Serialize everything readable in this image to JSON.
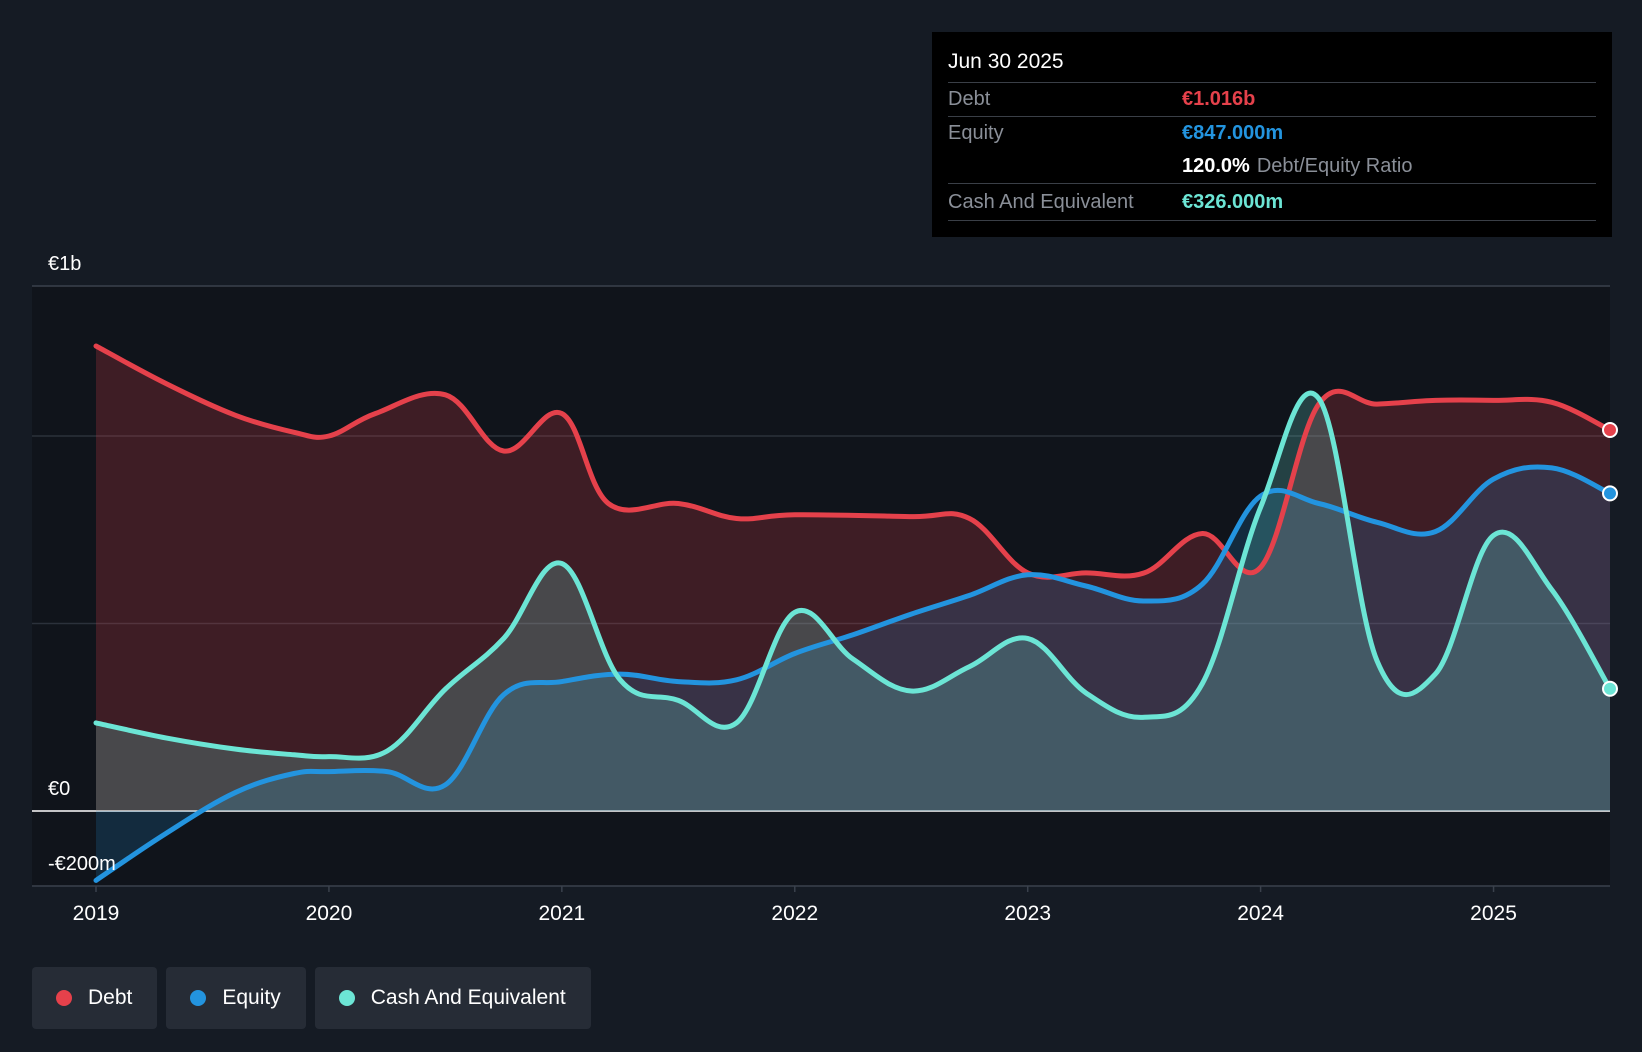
{
  "tooltip": {
    "date": "Jun 30 2025",
    "debt_label": "Debt",
    "debt_value": "€1.016b",
    "equity_label": "Equity",
    "equity_value": "€847.000m",
    "ratio_value": "120.0%",
    "ratio_label": "Debt/Equity Ratio",
    "cash_label": "Cash And Equivalent",
    "cash_value": "€326.000m"
  },
  "legend": {
    "debt": "Debt",
    "equity": "Equity",
    "cash": "Cash And Equivalent"
  },
  "colors": {
    "debt": "#e5414b",
    "equity": "#2394df",
    "cash": "#6ce5d5",
    "background": "#151b24",
    "plot_background": "#10141b"
  },
  "chart_data": {
    "type": "area",
    "title": "",
    "xlabel": "",
    "ylabel": "",
    "ylim": [
      -200,
      1400
    ],
    "y_tick_labels": [
      {
        "value": 1400,
        "label": "€1b"
      },
      {
        "value": 0,
        "label": "€0"
      },
      {
        "value": -200,
        "label": "-€200m"
      }
    ],
    "x_ticks": [
      2019,
      2020,
      2021,
      2022,
      2023,
      2024,
      2025
    ],
    "x_tick_labels": [
      "2019",
      "2020",
      "2021",
      "2022",
      "2023",
      "2024",
      "2025"
    ],
    "x_range": [
      2019.0,
      2025.5
    ],
    "series": [
      {
        "name": "Debt",
        "key": "debt",
        "x": [
          2019.0,
          2019.3,
          2019.6,
          2019.85,
          2020.0,
          2020.2,
          2020.5,
          2020.75,
          2021.0,
          2021.2,
          2021.5,
          2021.75,
          2022.0,
          2022.5,
          2022.75,
          2023.0,
          2023.25,
          2023.5,
          2023.75,
          2024.0,
          2024.25,
          2024.5,
          2024.75,
          2025.0,
          2025.25,
          2025.5
        ],
        "values": [
          1240,
          1140,
          1055,
          1010,
          1000,
          1060,
          1110,
          960,
          1060,
          820,
          820,
          780,
          790,
          785,
          780,
          635,
          635,
          635,
          740,
          650,
          1085,
          1085,
          1095,
          1095,
          1090,
          1016
        ]
      },
      {
        "name": "Equity",
        "key": "equity",
        "x": [
          2019.0,
          2019.3,
          2019.6,
          2019.85,
          2020.0,
          2020.25,
          2020.5,
          2020.75,
          2021.0,
          2021.25,
          2021.5,
          2021.75,
          2022.0,
          2022.25,
          2022.5,
          2022.75,
          2023.0,
          2023.25,
          2023.5,
          2023.75,
          2024.0,
          2024.25,
          2024.5,
          2024.75,
          2025.0,
          2025.25,
          2025.5
        ],
        "values": [
          -185,
          -60,
          50,
          100,
          105,
          105,
          70,
          310,
          345,
          365,
          345,
          350,
          420,
          470,
          525,
          575,
          630,
          600,
          560,
          605,
          840,
          820,
          770,
          745,
          885,
          915,
          847
        ]
      },
      {
        "name": "Cash And Equivalent",
        "key": "cash",
        "x": [
          2019.0,
          2019.3,
          2019.6,
          2019.85,
          2020.0,
          2020.25,
          2020.5,
          2020.75,
          2021.0,
          2021.25,
          2021.5,
          2021.75,
          2022.0,
          2022.25,
          2022.5,
          2022.75,
          2023.0,
          2023.25,
          2023.5,
          2023.75,
          2024.0,
          2024.25,
          2024.5,
          2024.75,
          2025.0,
          2025.25,
          2025.5
        ],
        "values": [
          235,
          195,
          165,
          150,
          145,
          160,
          325,
          460,
          660,
          350,
          295,
          235,
          530,
          405,
          320,
          385,
          460,
          315,
          250,
          340,
          810,
          1100,
          400,
          365,
          735,
          590,
          326
        ]
      }
    ]
  }
}
